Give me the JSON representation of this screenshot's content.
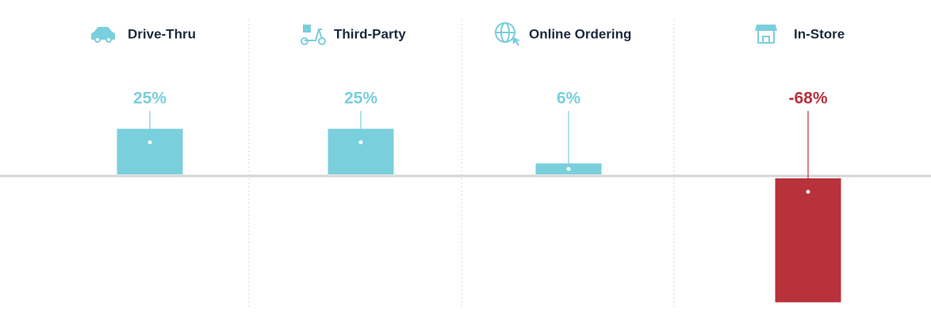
{
  "chart_data": {
    "type": "bar",
    "categories": [
      "Drive-Thru",
      "Third-Party",
      "Online Ordering",
      "In-Store"
    ],
    "values": [
      25,
      25,
      6,
      -68
    ],
    "value_labels": [
      "25%",
      "25%",
      "6%",
      "-68%"
    ],
    "color": "#7acfdc",
    "negative_color": "#b8323b"
  }
}
